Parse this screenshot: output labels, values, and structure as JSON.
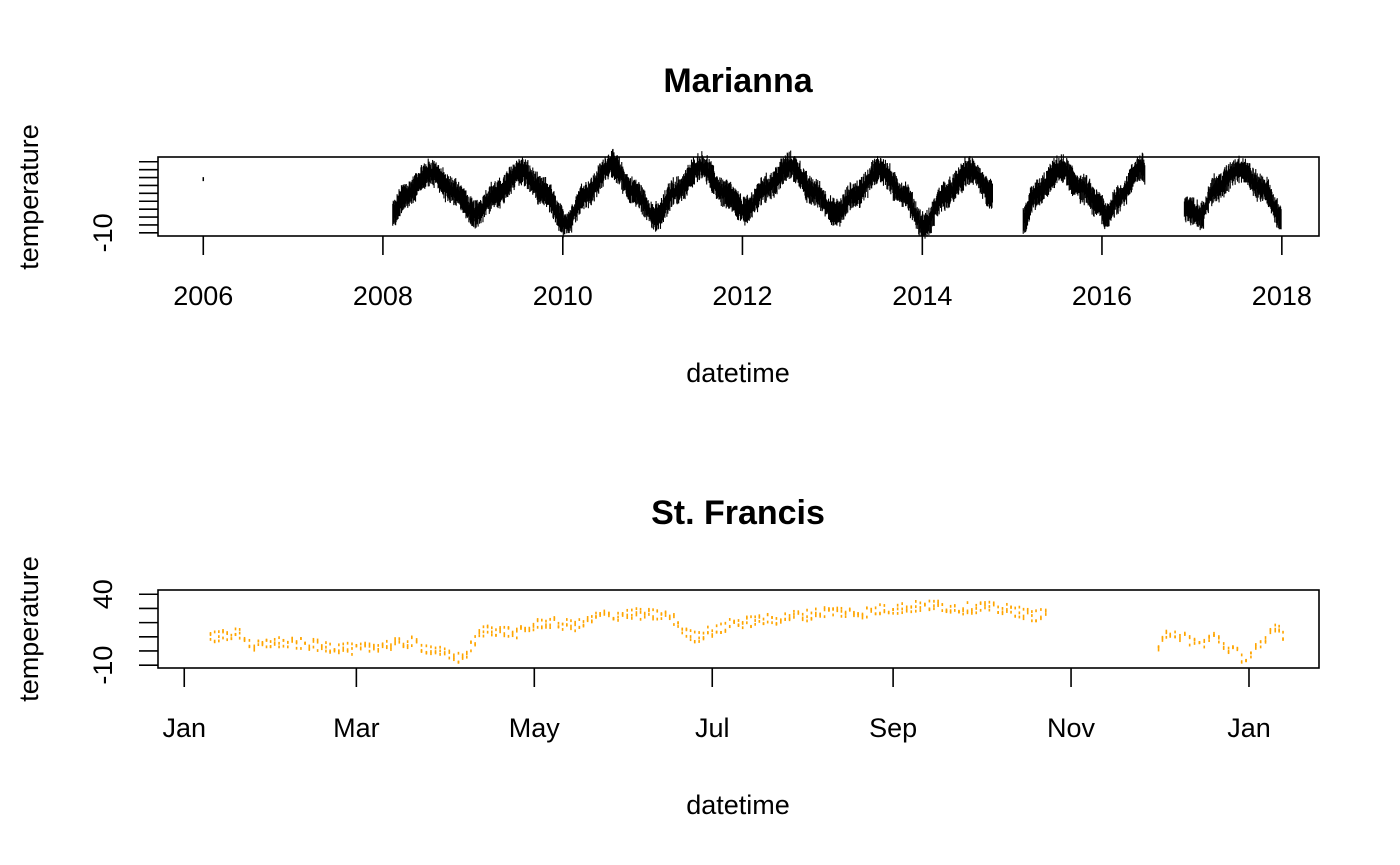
{
  "chart_data": [
    {
      "type": "line",
      "title": "Marianna",
      "xlabel": "datetime",
      "ylabel": "temperature",
      "color": "#000000",
      "x_ticks": [
        "2006",
        "2008",
        "2010",
        "2012",
        "2014",
        "2016",
        "2018"
      ],
      "y_ticks": [
        "-10"
      ],
      "xlim": [
        "2005-07-01",
        "2018-06-01"
      ],
      "ylim": [
        -12,
        38
      ],
      "series": [
        {
          "values": [
            [
              "2006-01-01",
              24
            ],
            [
              "2008-02-10",
              2
            ],
            [
              "2008-04-01",
              14
            ],
            [
              "2008-07-15",
              28
            ],
            [
              "2008-10-15",
              16
            ],
            [
              "2009-01-10",
              2
            ],
            [
              "2009-04-01",
              14
            ],
            [
              "2009-07-15",
              29
            ],
            [
              "2009-10-15",
              16
            ],
            [
              "2010-01-15",
              -4
            ],
            [
              "2010-04-01",
              14
            ],
            [
              "2010-07-20",
              33
            ],
            [
              "2010-10-15",
              16
            ],
            [
              "2011-01-15",
              0
            ],
            [
              "2011-04-01",
              16
            ],
            [
              "2011-07-20",
              32
            ],
            [
              "2011-10-15",
              16
            ],
            [
              "2012-01-15",
              4
            ],
            [
              "2012-04-01",
              18
            ],
            [
              "2012-07-15",
              32
            ],
            [
              "2012-10-15",
              16
            ],
            [
              "2013-01-15",
              2
            ],
            [
              "2013-04-01",
              14
            ],
            [
              "2013-07-15",
              30
            ],
            [
              "2013-10-15",
              14
            ],
            [
              "2014-01-10",
              -6
            ],
            [
              "2014-04-01",
              14
            ],
            [
              "2014-07-15",
              29
            ],
            [
              "2014-10-15",
              14
            ],
            [
              "2015-02-15",
              -2
            ],
            [
              "2015-04-01",
              14
            ],
            [
              "2015-07-20",
              30
            ],
            [
              "2015-10-15",
              18
            ],
            [
              "2015-12-20",
              8
            ],
            [
              "2016-01-20",
              0
            ],
            [
              "2016-03-05",
              12
            ],
            [
              "2016-06-15",
              32
            ],
            [
              "2016-06-25",
              26
            ],
            [
              "2016-12-01",
              6
            ],
            [
              "2016-12-31",
              4
            ],
            [
              "2017-02-05",
              0
            ],
            [
              "2017-04-01",
              18
            ],
            [
              "2017-07-15",
              30
            ],
            [
              "2017-10-15",
              18
            ],
            [
              "2017-12-31",
              0
            ]
          ]
        }
      ]
    },
    {
      "type": "line",
      "title": "St. Francis",
      "xlabel": "datetime",
      "ylabel": "temperature",
      "color": "#FFA500",
      "x_ticks": [
        "Jan",
        "Mar",
        "May",
        "Jul",
        "Sep",
        "Nov",
        "Jan"
      ],
      "y_ticks": [
        "-10",
        "40"
      ],
      "xlim": [
        "2016-12-23",
        "2018-01-25"
      ],
      "ylim": [
        -12,
        43
      ],
      "series": [
        {
          "values": [
            [
              "2017-01-10",
              10
            ],
            [
              "2017-01-20",
              12
            ],
            [
              "2017-01-25",
              3
            ],
            [
              "2017-02-01",
              6
            ],
            [
              "2017-02-10",
              5
            ],
            [
              "2017-02-20",
              3
            ],
            [
              "2017-03-01",
              1
            ],
            [
              "2017-03-10",
              4
            ],
            [
              "2017-03-20",
              6
            ],
            [
              "2017-03-25",
              2
            ],
            [
              "2017-04-05",
              -5
            ],
            [
              "2017-04-15",
              15
            ],
            [
              "2017-04-25",
              13
            ],
            [
              "2017-05-05",
              20
            ],
            [
              "2017-05-15",
              18
            ],
            [
              "2017-05-25",
              25
            ],
            [
              "2017-06-05",
              26
            ],
            [
              "2017-06-15",
              25
            ],
            [
              "2017-06-25",
              10
            ],
            [
              "2017-07-01",
              14
            ],
            [
              "2017-07-10",
              20
            ],
            [
              "2017-07-20",
              22
            ],
            [
              "2017-08-01",
              25
            ],
            [
              "2017-08-10",
              28
            ],
            [
              "2017-08-20",
              27
            ],
            [
              "2017-09-01",
              30
            ],
            [
              "2017-09-15",
              32
            ],
            [
              "2017-09-25",
              30
            ],
            [
              "2017-10-01",
              31
            ],
            [
              "2017-10-10",
              29
            ],
            [
              "2017-10-20",
              25
            ],
            [
              "2017-10-25",
              27
            ],
            [
              "2017-12-01",
              3
            ],
            [
              "2017-12-05",
              14
            ],
            [
              "2017-12-10",
              9
            ],
            [
              "2017-12-15",
              5
            ],
            [
              "2017-12-20",
              10
            ],
            [
              "2017-12-25",
              2
            ],
            [
              "2017-12-31",
              -5
            ],
            [
              "2018-01-05",
              3
            ],
            [
              "2018-01-10",
              18
            ],
            [
              "2018-01-14",
              10
            ]
          ]
        }
      ]
    }
  ]
}
